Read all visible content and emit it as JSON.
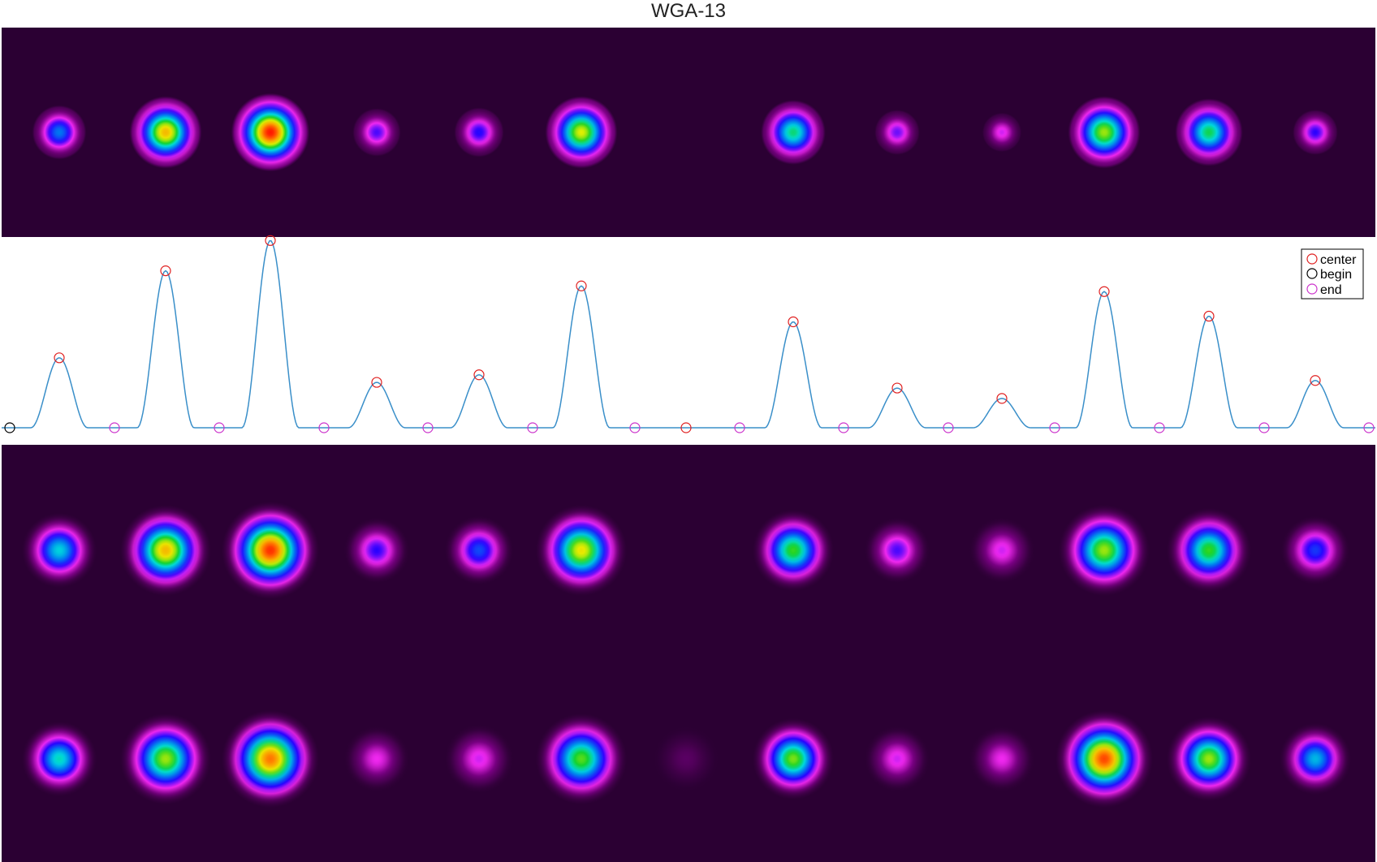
{
  "title": "WGA-13",
  "colors": {
    "background": "#2b0033",
    "profile_line": "#3a8fc9",
    "center_marker": "#e02020",
    "begin_marker": "#000000",
    "end_marker": "#cc33cc",
    "legend_border": "#000000"
  },
  "chart_data": {
    "type": "line",
    "panels": [
      "measured-spot-image",
      "intensity-profile",
      "fitted-spot-images"
    ],
    "x_range": [
      0,
      1696
    ],
    "y_range": [
      0,
      1.0
    ],
    "grid": false,
    "legend_placement": "top-right",
    "legend": [
      {
        "label": "center",
        "color": "#e02020"
      },
      {
        "label": "begin",
        "color": "#000000"
      },
      {
        "label": "end",
        "color": "#cc33cc"
      }
    ],
    "centers": [
      {
        "x": 73,
        "y": 0.37
      },
      {
        "x": 204,
        "y": 0.83
      },
      {
        "x": 333,
        "y": 0.99
      },
      {
        "x": 464,
        "y": 0.24
      },
      {
        "x": 590,
        "y": 0.28
      },
      {
        "x": 716,
        "y": 0.75
      },
      {
        "x": 845,
        "y": 0.0
      },
      {
        "x": 977,
        "y": 0.56
      },
      {
        "x": 1105,
        "y": 0.21
      },
      {
        "x": 1234,
        "y": 0.155
      },
      {
        "x": 1360,
        "y": 0.72
      },
      {
        "x": 1489,
        "y": 0.59
      },
      {
        "x": 1620,
        "y": 0.25
      }
    ],
    "begins": [
      12
    ],
    "ends": [
      141,
      270,
      399,
      527,
      656,
      782,
      911,
      1039,
      1168,
      1299,
      1428,
      1557,
      1686
    ],
    "spot_width": 35,
    "top_row": [
      {
        "x": 73,
        "amp": 0.45,
        "r": 36
      },
      {
        "x": 204,
        "amp": 0.85,
        "r": 48
      },
      {
        "x": 333,
        "amp": 1.0,
        "r": 52
      },
      {
        "x": 464,
        "amp": 0.3,
        "r": 32
      },
      {
        "x": 590,
        "amp": 0.33,
        "r": 33
      },
      {
        "x": 716,
        "amp": 0.78,
        "r": 48
      },
      {
        "x": 977,
        "amp": 0.62,
        "r": 43
      },
      {
        "x": 1105,
        "amp": 0.28,
        "r": 30
      },
      {
        "x": 1234,
        "amp": 0.22,
        "r": 26
      },
      {
        "x": 1360,
        "amp": 0.74,
        "r": 48
      },
      {
        "x": 1489,
        "amp": 0.64,
        "r": 45
      },
      {
        "x": 1620,
        "amp": 0.32,
        "r": 30
      }
    ],
    "fit_row_1": [
      {
        "x": 73,
        "amp": 0.55,
        "r": 46
      },
      {
        "x": 204,
        "amp": 0.85,
        "r": 56
      },
      {
        "x": 333,
        "amp": 0.98,
        "r": 60
      },
      {
        "x": 464,
        "amp": 0.32,
        "r": 40
      },
      {
        "x": 590,
        "amp": 0.4,
        "r": 42
      },
      {
        "x": 716,
        "amp": 0.8,
        "r": 56
      },
      {
        "x": 977,
        "amp": 0.68,
        "r": 50
      },
      {
        "x": 1105,
        "amp": 0.3,
        "r": 40
      },
      {
        "x": 1234,
        "amp": 0.22,
        "r": 40
      },
      {
        "x": 1360,
        "amp": 0.74,
        "r": 56
      },
      {
        "x": 1489,
        "amp": 0.68,
        "r": 52
      },
      {
        "x": 1620,
        "amp": 0.38,
        "r": 42
      }
    ],
    "fit_row_2": [
      {
        "x": 73,
        "amp": 0.58,
        "r": 46
      },
      {
        "x": 204,
        "amp": 0.74,
        "r": 56
      },
      {
        "x": 333,
        "amp": 0.92,
        "r": 60
      },
      {
        "x": 464,
        "amp": 0.2,
        "r": 40
      },
      {
        "x": 590,
        "amp": 0.22,
        "r": 42
      },
      {
        "x": 716,
        "amp": 0.7,
        "r": 56
      },
      {
        "x": 845,
        "amp": 0.06,
        "r": 40
      },
      {
        "x": 977,
        "amp": 0.72,
        "r": 50
      },
      {
        "x": 1105,
        "amp": 0.22,
        "r": 40
      },
      {
        "x": 1234,
        "amp": 0.2,
        "r": 40
      },
      {
        "x": 1360,
        "amp": 0.96,
        "r": 60
      },
      {
        "x": 1489,
        "amp": 0.74,
        "r": 52
      },
      {
        "x": 1620,
        "amp": 0.52,
        "r": 44
      }
    ]
  }
}
